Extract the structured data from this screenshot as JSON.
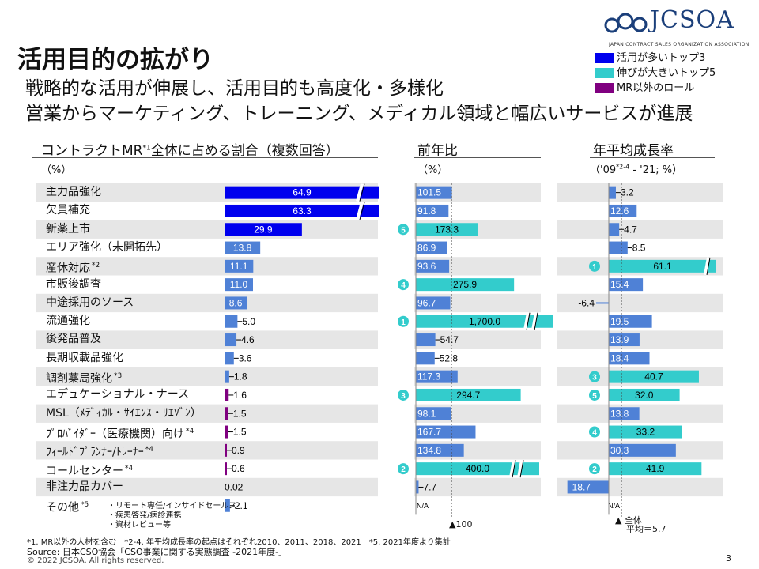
{
  "header": {
    "title": "活用目的の拡がり",
    "subtitle1": "戦略的な活用が伸展し、活用目的も高度化・多様化",
    "subtitle2": "営業からマーケティング、トレーニング、メディカル領域と幅広いサービスが進展"
  },
  "logo": {
    "text": "JCSOA",
    "sub": "JAPAN CONTRACT SALES ORGANIZATION ASSOCIATION"
  },
  "legend": [
    {
      "label": "活用が多いトップ3",
      "color": "#0000ee"
    },
    {
      "label": "伸びが大きいトップ5",
      "color": "#33cccc"
    },
    {
      "label": "MR以外のロール",
      "color": "#800080"
    }
  ],
  "panels": {
    "p1": {
      "title": "コントラクトMR",
      "sup": "*1",
      "title_rest": "全体に占める割合（複数回答）",
      "unit": "（%）"
    },
    "p2": {
      "title": "前年比",
      "unit": "（%）"
    },
    "p3": {
      "title": "年平均成長率",
      "unit_a": "（'09",
      "unit_sup": "*2-4",
      "unit_b": " - '21; %）"
    }
  },
  "footnotes": {
    "note1": "*1. MR以外の人材を含む　*2-4. 年平均成長率の起点はそれぞれ2010、2011、2018、2021　*5. 2021年度より集計",
    "source": "Source: 日本CSO協会「CSO事業に関する実態調査 -2021年度-」",
    "copyright": "© 2022  JCSOA.  All rights reserved.",
    "page": "3",
    "ref100": "▲100",
    "refavg_a": "▲ 全体",
    "refavg_b": "平均＝5.7",
    "other_items": [
      "・リモート専任/インサイドセールス",
      "・疾患啓発/病診連携",
      "・資材レビュー等"
    ]
  },
  "colors": {
    "blue": "#0000ee",
    "teal": "#33cccc",
    "purple": "#800080",
    "band": "#e6e6e6"
  },
  "chart_data": [
    {
      "type": "bar",
      "title": "コントラクトMR*1全体に占める割合（複数回答）",
      "categories": [
        "主力品強化",
        "欠員補充",
        "新薬上市",
        "エリア強化（未開拓先）",
        "産休対応",
        "市販後調査",
        "中途採用のソース",
        "流通強化",
        "後発品普及",
        "長期収載品強化",
        "調剤薬局強化",
        "エデュケーショナル・ナース",
        "MSL（ﾒﾃﾞｨｶﾙ・ｻｲｴﾝｽ・ﾘｴｿﾞﾝ）",
        "ﾌﾟﾛﾊﾞｲﾀﾞｰ（医療機関）向け",
        "ﾌｨｰﾙﾄﾞﾌﾟﾗﾝﾅｰ/ﾄﾚｰﾅｰ",
        "コールセンター",
        "非注力品カバー",
        "その他"
      ],
      "category_sups": [
        "",
        "",
        "",
        "",
        "*2",
        "",
        "",
        "",
        "",
        "",
        "*3",
        "",
        "",
        "*4",
        "*4",
        "*4",
        "",
        "*5"
      ],
      "values": [
        64.9,
        63.3,
        29.9,
        13.8,
        11.1,
        11.0,
        8.6,
        5.0,
        4.6,
        3.6,
        1.8,
        1.6,
        1.5,
        1.5,
        0.9,
        0.6,
        0.02,
        2.1
      ],
      "labels": [
        "64.9",
        "63.3",
        "29.9",
        "13.8",
        "11.1",
        "11.0",
        "8.6",
        "5.0",
        "4.6",
        "3.6",
        "1.8",
        "1.6",
        "1.5",
        "1.5",
        "0.9",
        "0.6",
        "0.02",
        "2.1"
      ],
      "styles": [
        "blue",
        "blue",
        "blue",
        "light",
        "light",
        "light",
        "light",
        "light",
        "light",
        "light",
        "light",
        "purple",
        "purple",
        "purple",
        "purple",
        "purple",
        "none",
        "light"
      ],
      "unit": "%"
    },
    {
      "type": "bar",
      "title": "前年比",
      "values": [
        101.5,
        91.8,
        173.3,
        86.9,
        93.6,
        275.9,
        96.7,
        1700.0,
        54.7,
        52.8,
        117.3,
        294.7,
        98.1,
        167.7,
        134.8,
        400.0,
        7.7,
        null
      ],
      "labels": [
        "101.5",
        "91.8",
        "173.3",
        "86.9",
        "93.6",
        "275.9",
        "96.7",
        "1,700.0",
        "54.7",
        "52.8",
        "117.3",
        "294.7",
        "98.1",
        "167.7",
        "134.8",
        "400.0",
        "7.7",
        "N/A"
      ],
      "styles": [
        "light",
        "light",
        "teal",
        "light",
        "light",
        "teal",
        "light",
        "teal",
        "light",
        "light",
        "light",
        "teal",
        "light",
        "light",
        "light",
        "teal",
        "light",
        "na"
      ],
      "ranks": [
        "",
        "",
        "5",
        "",
        "",
        "4",
        "",
        "1",
        "",
        "",
        "",
        "3",
        "",
        "",
        "",
        "2",
        "",
        ""
      ],
      "reference": 100,
      "unit": "%"
    },
    {
      "type": "bar",
      "title": "年平均成長率",
      "values": [
        3.2,
        12.6,
        4.7,
        8.5,
        61.1,
        15.4,
        -6.4,
        19.5,
        13.9,
        18.4,
        40.7,
        32.0,
        13.8,
        33.2,
        30.3,
        41.9,
        -18.7,
        null
      ],
      "labels": [
        "3.2",
        "12.6",
        "4.7",
        "8.5",
        "61.1",
        "15.4",
        "-6.4",
        "19.5",
        "13.9",
        "18.4",
        "40.7",
        "32.0",
        "13.8",
        "33.2",
        "30.3",
        "41.9",
        "-18.7",
        "N/A"
      ],
      "styles": [
        "light",
        "light",
        "light",
        "light",
        "teal",
        "light",
        "light",
        "light",
        "light",
        "light",
        "teal",
        "teal",
        "light",
        "teal",
        "light",
        "teal",
        "light",
        "na"
      ],
      "ranks": [
        "",
        "",
        "",
        "",
        "1",
        "",
        "",
        "",
        "",
        "",
        "3",
        "5",
        "",
        "4",
        "",
        "2",
        "",
        ""
      ],
      "reference": 5.7,
      "unit": "%"
    }
  ]
}
